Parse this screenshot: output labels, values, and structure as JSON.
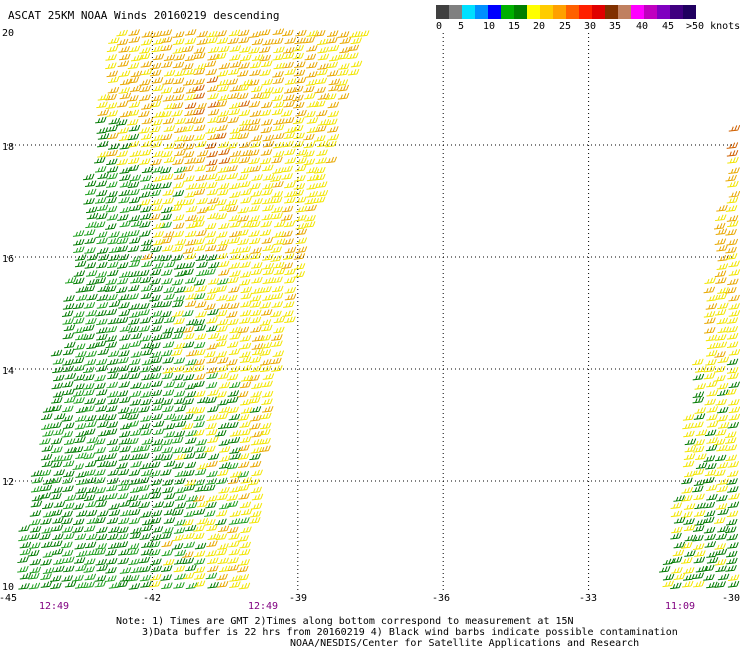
{
  "title": "ASCAT 25KM NOAA Winds 20160219 descending",
  "color_scale": {
    "labels": [
      "0",
      "5",
      "10",
      "15",
      "20",
      "25",
      "30",
      "35",
      "40",
      "45",
      ">50 knots"
    ],
    "colors": [
      "#404040",
      "#808080",
      "#00e0ff",
      "#0090ff",
      "#0000ff",
      "#00b000",
      "#008000",
      "#ffff00",
      "#ffcc00",
      "#ffa000",
      "#ff6000",
      "#ff2000",
      "#e00000",
      "#803000",
      "#c08060",
      "#ff00ff",
      "#c000c0",
      "#8000c0",
      "#400080",
      "#200060"
    ]
  },
  "lat_labels": [
    "20",
    "18",
    "16",
    "14",
    "12",
    "10"
  ],
  "lon_labels": [
    "-45",
    "-42",
    "-39",
    "-36",
    "-33",
    "-30"
  ],
  "time_labels": [
    "12:49",
    "12:49",
    "11:09"
  ],
  "notes": [
    "Note: 1) Times are GMT 2)Times along bottom correspond to measurement at 15N",
    "3)Data buffer is 22 hrs from 20160219 4) Black wind barbs indicate possible contamination",
    "NOAA/NESDIS/Center for Satellite Applications and Research"
  ],
  "barb_colors": {
    "green_dark": "#007a00",
    "green": "#1fa01f",
    "yellow": "#f2e600",
    "orange": "#e8a800",
    "dark_orange": "#d06000"
  },
  "grid_color": "#000000",
  "time_color": "#800080"
}
